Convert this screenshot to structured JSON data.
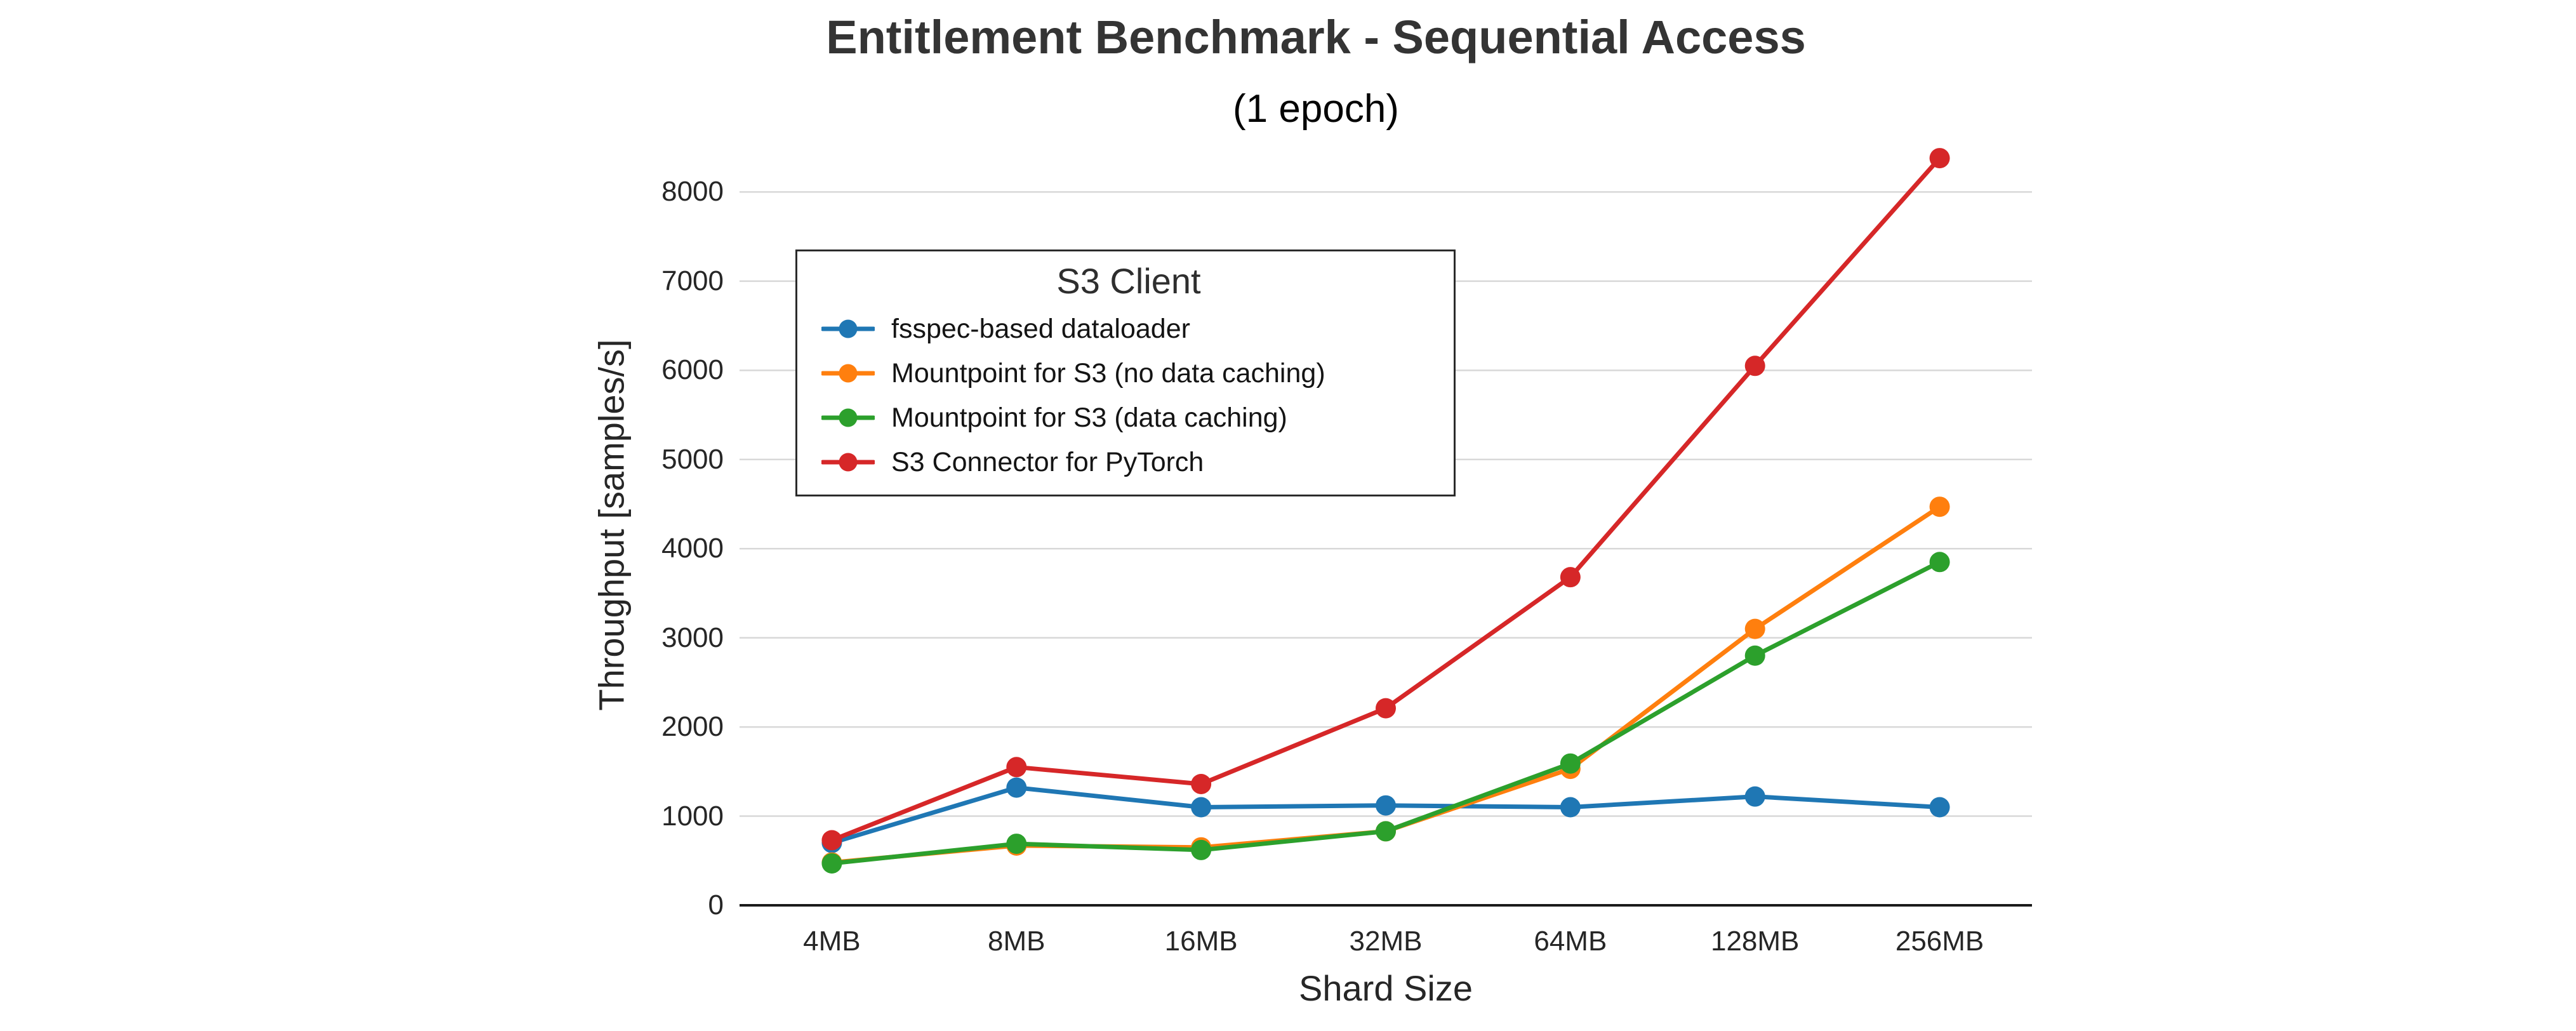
{
  "chart_data": {
    "type": "line",
    "title": "Entitlement Benchmark - Sequential Access",
    "subtitle": "(1 epoch)",
    "xlabel": "Shard Size",
    "ylabel": "Throughput [samples/s]",
    "legend_title": "S3 Client",
    "legend_position": "upper left",
    "grid": "horizontal",
    "marker": "circle",
    "categories": [
      "4MB",
      "8MB",
      "16MB",
      "32MB",
      "64MB",
      "128MB",
      "256MB"
    ],
    "ylim": [
      0,
      8530
    ],
    "yticks": [
      0,
      1000,
      2000,
      3000,
      4000,
      5000,
      6000,
      7000,
      8000
    ],
    "series": [
      {
        "name": "fsspec-based dataloader",
        "color": "#1f77b4",
        "values": [
          700,
          1320,
          1100,
          1120,
          1100,
          1220,
          1100
        ]
      },
      {
        "name": "Mountpoint for S3 (no data caching)",
        "color": "#ff7f0e",
        "values": [
          480,
          670,
          650,
          830,
          1530,
          3100,
          4470
        ]
      },
      {
        "name": "Mountpoint for S3 (data caching)",
        "color": "#2ca02c",
        "values": [
          470,
          690,
          620,
          830,
          1590,
          2800,
          3850
        ]
      },
      {
        "name": "S3 Connector for PyTorch",
        "color": "#d62728",
        "values": [
          730,
          1550,
          1360,
          2210,
          3680,
          6050,
          8380
        ]
      }
    ]
  }
}
